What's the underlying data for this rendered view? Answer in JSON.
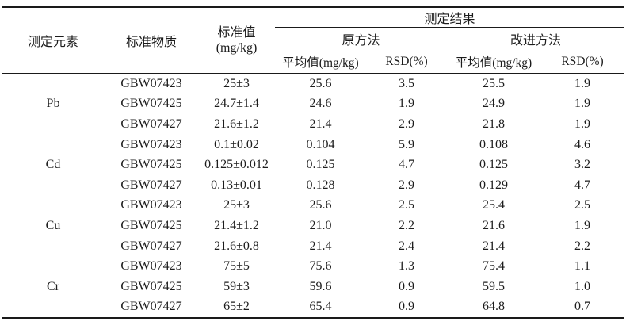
{
  "page": {
    "background": "#ffffff",
    "text_color": "#1c1c1c",
    "rule_color": "#1a1a1a"
  },
  "table": {
    "headers": {
      "element": "测定元素",
      "material": "标准物质",
      "standard_value_line1": "标准值",
      "standard_value_line2": "(mg/kg)",
      "results_group": "测定结果",
      "method_original": "原方法",
      "method_improved": "改进方法",
      "mean_label_original": "平均值(mg/kg)",
      "rsd_label_original": "RSD(%)",
      "mean_label_improved": "平均值(mg/kg)",
      "rsd_label_improved": "RSD(%)"
    },
    "groups": [
      {
        "element": "Pb",
        "rows": [
          {
            "material": "GBW07423",
            "standard_value": "25±3",
            "original_mean": "25.6",
            "original_rsd": "3.5",
            "improved_mean": "25.5",
            "improved_rsd": "1.9"
          },
          {
            "material": "GBW07425",
            "standard_value": "24.7±1.4",
            "original_mean": "24.6",
            "original_rsd": "1.9",
            "improved_mean": "24.9",
            "improved_rsd": "1.9"
          },
          {
            "material": "GBW07427",
            "standard_value": "21.6±1.2",
            "original_mean": "21.4",
            "original_rsd": "2.9",
            "improved_mean": "21.8",
            "improved_rsd": "1.9"
          }
        ]
      },
      {
        "element": "Cd",
        "rows": [
          {
            "material": "GBW07423",
            "standard_value": "0.1±0.02",
            "original_mean": "0.104",
            "original_rsd": "5.9",
            "improved_mean": "0.108",
            "improved_rsd": "4.6"
          },
          {
            "material": "GBW07425",
            "standard_value": "0.125±0.012",
            "original_mean": "0.125",
            "original_rsd": "4.7",
            "improved_mean": "0.125",
            "improved_rsd": "3.2"
          },
          {
            "material": "GBW07427",
            "standard_value": "0.13±0.01",
            "original_mean": "0.128",
            "original_rsd": "2.9",
            "improved_mean": "0.129",
            "improved_rsd": "4.7"
          }
        ]
      },
      {
        "element": "Cu",
        "rows": [
          {
            "material": "GBW07423",
            "standard_value": "25±3",
            "original_mean": "25.6",
            "original_rsd": "2.5",
            "improved_mean": "25.4",
            "improved_rsd": "2.5"
          },
          {
            "material": "GBW07425",
            "standard_value": "21.4±1.2",
            "original_mean": "21.0",
            "original_rsd": "2.2",
            "improved_mean": "21.6",
            "improved_rsd": "1.9"
          },
          {
            "material": "GBW07427",
            "standard_value": "21.6±0.8",
            "original_mean": "21.4",
            "original_rsd": "2.4",
            "improved_mean": "21.4",
            "improved_rsd": "2.2"
          }
        ]
      },
      {
        "element": "Cr",
        "rows": [
          {
            "material": "GBW07423",
            "standard_value": "75±5",
            "original_mean": "75.6",
            "original_rsd": "1.3",
            "improved_mean": "75.4",
            "improved_rsd": "1.1"
          },
          {
            "material": "GBW07425",
            "standard_value": "59±3",
            "original_mean": "59.6",
            "original_rsd": "0.9",
            "improved_mean": "59.5",
            "improved_rsd": "1.0"
          },
          {
            "material": "GBW07427",
            "standard_value": "65±2",
            "original_mean": "65.4",
            "original_rsd": "0.9",
            "improved_mean": "64.8",
            "improved_rsd": "0.7"
          }
        ]
      }
    ]
  }
}
